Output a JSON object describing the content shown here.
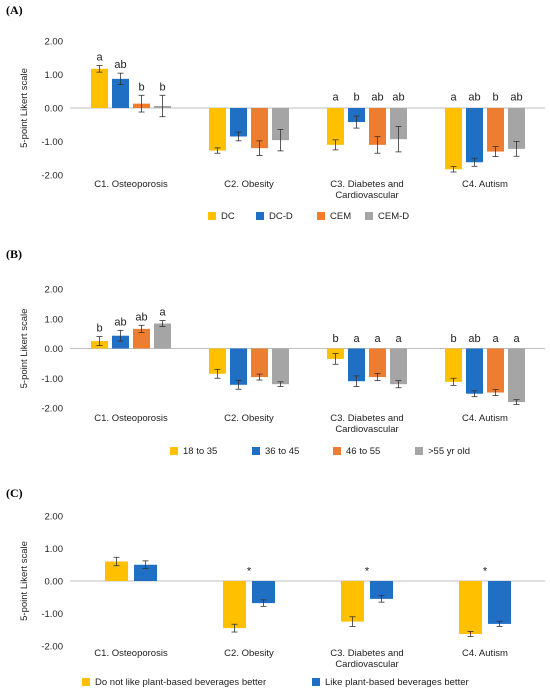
{
  "colors": {
    "yellow": "#FFC000",
    "blue": "#1F6FC5",
    "orange": "#ED7D31",
    "gray": "#A5A5A5"
  },
  "chart_data": [
    {
      "panel": "(A)",
      "type": "bar",
      "ylabel": "5-point Likert scale",
      "ylim": [
        -2,
        2
      ],
      "yticks": [
        "2.00",
        "1.00",
        "0.00",
        "-1.00",
        "-2.00"
      ],
      "categories": [
        "C1. Osteoporosis",
        "C2. Obesity",
        "C3. Diabetes and\nCardiovascular",
        "C4. Autism"
      ],
      "series": [
        {
          "name": "DC",
          "color": "#FFC000",
          "values": [
            1.17,
            -1.27,
            -1.1,
            -1.83
          ],
          "err": [
            0.1,
            0.08,
            0.15,
            0.08
          ],
          "labels": [
            "a",
            "",
            "a",
            "a"
          ]
        },
        {
          "name": "DC-D",
          "color": "#1F6FC5",
          "values": [
            0.87,
            -0.85,
            -0.42,
            -1.62
          ],
          "err": [
            0.17,
            0.13,
            0.18,
            0.12
          ],
          "labels": [
            "ab",
            "",
            "b",
            "ab"
          ]
        },
        {
          "name": "CEM",
          "color": "#ED7D31",
          "values": [
            0.13,
            -1.2,
            -1.1,
            -1.3
          ],
          "err": [
            0.25,
            0.22,
            0.25,
            0.15
          ],
          "labels": [
            "b",
            "",
            "ab",
            "b"
          ]
        },
        {
          "name": "CEM-D",
          "color": "#A5A5A5",
          "values": [
            0.06,
            -0.96,
            -0.93,
            -1.22
          ],
          "err": [
            0.32,
            0.32,
            0.38,
            0.22
          ],
          "labels": [
            "b",
            "",
            "ab",
            "ab"
          ]
        }
      ],
      "stars": [
        "",
        "",
        "",
        ""
      ],
      "legend": "bottom"
    },
    {
      "panel": "(B)",
      "type": "bar",
      "ylabel": "5-point Likert scale",
      "ylim": [
        -2,
        2
      ],
      "yticks": [
        "2.00",
        "1.00",
        "0.00",
        "-1.00",
        "-2.00"
      ],
      "categories": [
        "C1. Osteoporosis",
        "C2. Obesity",
        "C3. Diabetes and\nCardiovascular",
        "C4. Autism"
      ],
      "series": [
        {
          "name": "18 to 35",
          "color": "#FFC000",
          "values": [
            0.25,
            -0.85,
            -0.35,
            -1.12
          ],
          "err": [
            0.15,
            0.15,
            0.18,
            0.12
          ],
          "labels": [
            "b",
            "",
            "b",
            "b"
          ]
        },
        {
          "name": "36 to 45",
          "color": "#1F6FC5",
          "values": [
            0.43,
            -1.22,
            -1.1,
            -1.52
          ],
          "err": [
            0.18,
            0.15,
            0.18,
            0.1
          ],
          "labels": [
            "ab",
            "",
            "a",
            "ab"
          ]
        },
        {
          "name": "46 to 55",
          "color": "#ED7D31",
          "values": [
            0.66,
            -0.96,
            -0.96,
            -1.48
          ],
          "err": [
            0.12,
            0.1,
            0.12,
            0.1
          ],
          "labels": [
            "ab",
            "",
            "a",
            "a"
          ]
        },
        {
          "name": ">55 yr old",
          "color": "#A5A5A5",
          "values": [
            0.84,
            -1.2,
            -1.2,
            -1.8
          ],
          "err": [
            0.1,
            0.08,
            0.12,
            0.08
          ],
          "labels": [
            "a",
            "",
            "a",
            "a"
          ]
        }
      ],
      "stars": [
        "",
        "",
        "",
        ""
      ],
      "legend": "bottom"
    },
    {
      "panel": "(C)",
      "type": "bar",
      "ylabel": "5-point Likert scale",
      "ylim": [
        -2,
        2
      ],
      "yticks": [
        "2.00",
        "1.00",
        "0.00",
        "-1.00",
        "-2.00"
      ],
      "categories": [
        "C1. Osteoporosis",
        "C2. Obesity",
        "C3. Diabetes and\nCardiovascular",
        "C4. Autism"
      ],
      "series": [
        {
          "name": "Do not like plant-based beverages better",
          "color": "#FFC000",
          "values": [
            0.6,
            -1.45,
            -1.25,
            -1.63
          ],
          "err": [
            0.13,
            0.12,
            0.15,
            0.08
          ],
          "labels": [
            "",
            "",
            "",
            ""
          ]
        },
        {
          "name": "Like plant-based beverages better",
          "color": "#1F6FC5",
          "values": [
            0.5,
            -0.68,
            -0.55,
            -1.32
          ],
          "err": [
            0.12,
            0.1,
            0.1,
            0.08
          ],
          "labels": [
            "",
            "",
            "",
            ""
          ]
        }
      ],
      "stars": [
        "",
        "*",
        "*",
        "*"
      ],
      "legend": "bottom"
    }
  ]
}
